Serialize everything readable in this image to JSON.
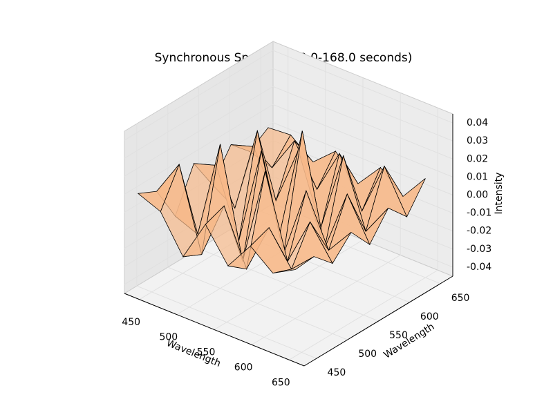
{
  "chart_data": {
    "type": "surface",
    "title": "Synchronous Spectrum (0.0-168.0 seconds)",
    "xlabel": "Wavelength",
    "ylabel": "Wavelength",
    "zlabel": "Intensity",
    "x": [
      440,
      470,
      500,
      530,
      560,
      590,
      620,
      650
    ],
    "y": [
      440,
      470,
      500,
      530,
      560,
      590,
      620,
      650
    ],
    "z": [
      [
        0.01,
        0.005,
        -0.015,
        0.008,
        -0.01,
        0.006,
        -0.004,
        0.003
      ],
      [
        0.005,
        0.025,
        -0.02,
        0.012,
        -0.018,
        0.01,
        -0.008,
        0.004
      ],
      [
        -0.015,
        -0.02,
        0.035,
        -0.025,
        0.03,
        -0.015,
        0.012,
        -0.006
      ],
      [
        0.008,
        0.012,
        -0.025,
        0.03,
        -0.022,
        0.018,
        -0.01,
        0.005
      ],
      [
        -0.01,
        -0.018,
        0.03,
        -0.022,
        0.04,
        -0.02,
        0.015,
        -0.008
      ],
      [
        0.006,
        0.01,
        -0.015,
        0.018,
        -0.02,
        0.025,
        -0.012,
        0.006
      ],
      [
        -0.004,
        -0.008,
        0.012,
        -0.01,
        0.015,
        -0.012,
        0.018,
        -0.005
      ],
      [
        0.003,
        0.004,
        -0.006,
        0.005,
        -0.008,
        0.006,
        -0.005,
        0.01
      ]
    ],
    "xlim": [
      430,
      670
    ],
    "ylim": [
      430,
      670
    ],
    "zlim": [
      -0.045,
      0.045
    ],
    "xticks": [
      450,
      500,
      550,
      600,
      650
    ],
    "yticks": [
      450,
      500,
      550,
      600,
      650
    ],
    "zticks": [
      -0.04,
      -0.03,
      -0.02,
      -0.01,
      {
        "value": 0,
        "label": "0.00"
      },
      0.01,
      0.02,
      0.03,
      0.04
    ],
    "grid": true,
    "color": "#f7b98a"
  }
}
